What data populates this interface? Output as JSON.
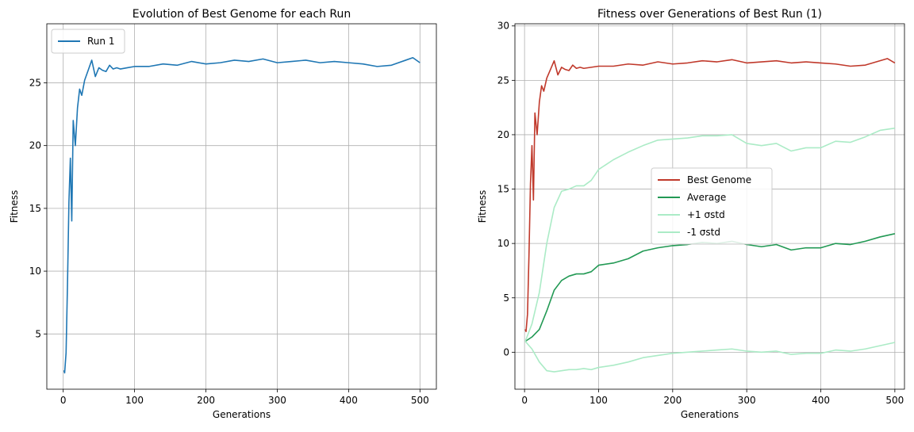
{
  "chart_data": [
    {
      "type": "line",
      "title": "Evolution of Best Genome for each Run",
      "xlabel": "Generations",
      "ylabel": "Fitness",
      "xlim": [
        -23,
        523
      ],
      "ylim": [
        0.6,
        29.7
      ],
      "xticks": [
        0,
        100,
        200,
        300,
        400,
        500
      ],
      "yticks": [
        5,
        10,
        15,
        20,
        25
      ],
      "grid": true,
      "legend": "top-left",
      "series": [
        {
          "name": "Run 1",
          "color": "#1f77b4",
          "x": [
            1,
            2,
            4,
            6,
            8,
            10,
            12,
            14,
            17,
            20,
            23,
            26,
            30,
            35,
            40,
            45,
            50,
            55,
            60,
            65,
            70,
            75,
            80,
            90,
            100,
            120,
            140,
            160,
            180,
            200,
            220,
            240,
            260,
            280,
            300,
            320,
            340,
            360,
            380,
            400,
            420,
            440,
            460,
            480,
            490,
            500
          ],
          "y": [
            2.1,
            1.9,
            3.5,
            9,
            15.5,
            19,
            14,
            22,
            20,
            23,
            24.5,
            24,
            25.2,
            26,
            26.8,
            25.5,
            26.2,
            26,
            25.9,
            26.4,
            26.1,
            26.2,
            26.1,
            26.2,
            26.3,
            26.3,
            26.5,
            26.4,
            26.7,
            26.5,
            26.6,
            26.8,
            26.7,
            26.9,
            26.6,
            26.7,
            26.8,
            26.6,
            26.7,
            26.6,
            26.5,
            26.3,
            26.4,
            26.8,
            27,
            26.6
          ]
        }
      ]
    },
    {
      "type": "line",
      "title": "Fitness over Generations of Best Run (1)",
      "xlabel": "Generations",
      "ylabel": "Fitness",
      "xlim": [
        -13,
        513
      ],
      "ylim": [
        -3.4,
        30.2
      ],
      "xticks": [
        0,
        100,
        200,
        300,
        400,
        500
      ],
      "yticks": [
        0,
        5,
        10,
        15,
        20,
        25,
        30
      ],
      "grid": true,
      "legend": "center",
      "series": [
        {
          "name": "Best Genome",
          "color": "#c0392b",
          "x": [
            1,
            2,
            4,
            6,
            8,
            10,
            12,
            14,
            17,
            20,
            23,
            26,
            30,
            35,
            40,
            45,
            50,
            55,
            60,
            65,
            70,
            75,
            80,
            90,
            100,
            120,
            140,
            160,
            180,
            200,
            220,
            240,
            260,
            280,
            300,
            320,
            340,
            360,
            380,
            400,
            420,
            440,
            460,
            480,
            490,
            500
          ],
          "y": [
            2.1,
            1.9,
            3.5,
            9,
            15.5,
            19,
            14,
            22,
            20,
            23,
            24.5,
            24,
            25.2,
            26,
            26.8,
            25.5,
            26.2,
            26,
            25.9,
            26.4,
            26.1,
            26.2,
            26.1,
            26.2,
            26.3,
            26.3,
            26.5,
            26.4,
            26.7,
            26.5,
            26.6,
            26.8,
            26.7,
            26.9,
            26.6,
            26.7,
            26.8,
            26.6,
            26.7,
            26.6,
            26.5,
            26.3,
            26.4,
            26.8,
            27,
            26.6
          ]
        },
        {
          "name": "Average",
          "color": "#229954",
          "x": [
            1,
            10,
            20,
            30,
            40,
            50,
            60,
            70,
            80,
            90,
            100,
            120,
            140,
            160,
            180,
            200,
            220,
            240,
            260,
            280,
            300,
            320,
            340,
            360,
            380,
            400,
            420,
            440,
            460,
            480,
            500
          ],
          "y": [
            1,
            1.4,
            2.1,
            3.8,
            5.7,
            6.6,
            7,
            7.2,
            7.2,
            7.4,
            8,
            8.2,
            8.6,
            9.3,
            9.6,
            9.8,
            9.9,
            10.1,
            10,
            10.2,
            9.9,
            9.7,
            9.9,
            9.4,
            9.6,
            9.6,
            10,
            9.9,
            10.2,
            10.6,
            10.9
          ]
        },
        {
          "name": "+1 σstd",
          "color": "#abebc6",
          "x": [
            1,
            10,
            20,
            30,
            40,
            50,
            60,
            70,
            80,
            90,
            100,
            120,
            140,
            160,
            180,
            200,
            220,
            240,
            260,
            280,
            300,
            320,
            340,
            360,
            380,
            400,
            420,
            440,
            460,
            480,
            500
          ],
          "y": [
            1,
            2.6,
            5.5,
            10,
            13.3,
            14.8,
            15,
            15.3,
            15.3,
            15.8,
            16.8,
            17.7,
            18.4,
            19,
            19.5,
            19.6,
            19.7,
            19.9,
            19.9,
            20,
            19.2,
            19,
            19.2,
            18.5,
            18.8,
            18.8,
            19.4,
            19.3,
            19.8,
            20.4,
            20.6
          ]
        },
        {
          "name": "-1 σstd",
          "color": "#abebc6",
          "x": [
            1,
            10,
            20,
            30,
            40,
            50,
            60,
            70,
            80,
            90,
            100,
            120,
            140,
            160,
            180,
            200,
            220,
            240,
            260,
            280,
            300,
            320,
            340,
            360,
            380,
            400,
            420,
            440,
            460,
            480,
            500
          ],
          "y": [
            1,
            0.3,
            -0.9,
            -1.7,
            -1.8,
            -1.7,
            -1.6,
            -1.6,
            -1.5,
            -1.6,
            -1.4,
            -1.2,
            -0.9,
            -0.5,
            -0.3,
            -0.1,
            0,
            0.1,
            0.2,
            0.3,
            0.1,
            0,
            0.1,
            -0.2,
            -0.1,
            -0.1,
            0.2,
            0.1,
            0.3,
            0.6,
            0.9
          ]
        }
      ]
    }
  ]
}
